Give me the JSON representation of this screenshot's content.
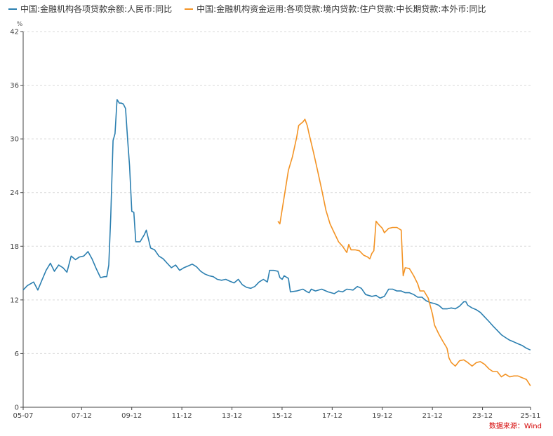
{
  "chart_data": {
    "type": "line",
    "ylabel": "%",
    "ylim": [
      0,
      42
    ],
    "yticks": [
      "0",
      "6",
      "12",
      "18",
      "24",
      "30",
      "36",
      "42"
    ],
    "xlim": [
      2005.5833,
      2025.8333
    ],
    "xticks": [
      {
        "label": "05-07",
        "x": 2005.5833
      },
      {
        "label": "07-12",
        "x": 2007.9167
      },
      {
        "label": "09-12",
        "x": 2009.9167
      },
      {
        "label": "11-12",
        "x": 2011.9167
      },
      {
        "label": "13-12",
        "x": 2013.9167
      },
      {
        "label": "15-12",
        "x": 2015.9167
      },
      {
        "label": "17-12",
        "x": 2017.9167
      },
      {
        "label": "19-12",
        "x": 2019.9167
      },
      {
        "label": "21-12",
        "x": 2021.9167
      },
      {
        "label": "23-12",
        "x": 2023.9167
      },
      {
        "label": "25-11",
        "x": 2025.8333
      }
    ],
    "grid": true,
    "legend_position": "top-left",
    "series": [
      {
        "name": "中国:金融机构各项贷款余额:人民币:同比",
        "color": "#2b7fb0",
        "points": [
          [
            2005.58,
            13.1
          ],
          [
            2005.75,
            13.6
          ],
          [
            2006.0,
            14.0
          ],
          [
            2006.17,
            13.1
          ],
          [
            2006.33,
            14.2
          ],
          [
            2006.5,
            15.3
          ],
          [
            2006.67,
            16.1
          ],
          [
            2006.83,
            15.2
          ],
          [
            2007.0,
            15.9
          ],
          [
            2007.17,
            15.6
          ],
          [
            2007.33,
            15.1
          ],
          [
            2007.5,
            16.9
          ],
          [
            2007.67,
            16.5
          ],
          [
            2007.83,
            16.8
          ],
          [
            2008.0,
            16.9
          ],
          [
            2008.17,
            17.4
          ],
          [
            2008.33,
            16.6
          ],
          [
            2008.5,
            15.5
          ],
          [
            2008.67,
            14.5
          ],
          [
            2008.83,
            14.6
          ],
          [
            2008.92,
            14.6
          ],
          [
            2009.0,
            15.9
          ],
          [
            2009.08,
            21.3
          ],
          [
            2009.17,
            29.8
          ],
          [
            2009.25,
            30.6
          ],
          [
            2009.33,
            34.4
          ],
          [
            2009.42,
            34.0
          ],
          [
            2009.5,
            34.0
          ],
          [
            2009.58,
            33.9
          ],
          [
            2009.67,
            33.4
          ],
          [
            2009.75,
            30.0
          ],
          [
            2009.83,
            27.0
          ],
          [
            2009.92,
            21.9
          ],
          [
            2010.0,
            21.8
          ],
          [
            2010.08,
            18.5
          ],
          [
            2010.25,
            18.5
          ],
          [
            2010.42,
            19.3
          ],
          [
            2010.5,
            19.8
          ],
          [
            2010.67,
            17.8
          ],
          [
            2010.83,
            17.6
          ],
          [
            2011.0,
            16.9
          ],
          [
            2011.17,
            16.6
          ],
          [
            2011.33,
            16.1
          ],
          [
            2011.5,
            15.6
          ],
          [
            2011.67,
            15.9
          ],
          [
            2011.83,
            15.3
          ],
          [
            2012.0,
            15.6
          ],
          [
            2012.17,
            15.8
          ],
          [
            2012.33,
            16.0
          ],
          [
            2012.5,
            15.7
          ],
          [
            2012.67,
            15.2
          ],
          [
            2012.83,
            14.9
          ],
          [
            2013.0,
            14.7
          ],
          [
            2013.17,
            14.6
          ],
          [
            2013.33,
            14.3
          ],
          [
            2013.5,
            14.2
          ],
          [
            2013.67,
            14.3
          ],
          [
            2013.83,
            14.1
          ],
          [
            2014.0,
            13.9
          ],
          [
            2014.17,
            14.3
          ],
          [
            2014.33,
            13.7
          ],
          [
            2014.5,
            13.4
          ],
          [
            2014.67,
            13.3
          ],
          [
            2014.83,
            13.5
          ],
          [
            2015.0,
            14.0
          ],
          [
            2015.17,
            14.3
          ],
          [
            2015.33,
            14.0
          ],
          [
            2015.42,
            15.3
          ],
          [
            2015.58,
            15.3
          ],
          [
            2015.75,
            15.2
          ],
          [
            2015.83,
            14.5
          ],
          [
            2015.92,
            14.3
          ],
          [
            2016.0,
            14.7
          ],
          [
            2016.17,
            14.4
          ],
          [
            2016.25,
            12.9
          ],
          [
            2016.5,
            13.0
          ],
          [
            2016.75,
            13.2
          ],
          [
            2016.92,
            12.9
          ],
          [
            2017.0,
            12.8
          ],
          [
            2017.08,
            13.2
          ],
          [
            2017.25,
            13.0
          ],
          [
            2017.5,
            13.2
          ],
          [
            2017.75,
            12.9
          ],
          [
            2018.0,
            12.7
          ],
          [
            2018.17,
            13.0
          ],
          [
            2018.33,
            12.9
          ],
          [
            2018.5,
            13.2
          ],
          [
            2018.75,
            13.1
          ],
          [
            2018.92,
            13.5
          ],
          [
            2019.08,
            13.3
          ],
          [
            2019.25,
            12.6
          ],
          [
            2019.5,
            12.4
          ],
          [
            2019.67,
            12.5
          ],
          [
            2019.83,
            12.2
          ],
          [
            2020.0,
            12.4
          ],
          [
            2020.17,
            13.2
          ],
          [
            2020.33,
            13.2
          ],
          [
            2020.5,
            13.0
          ],
          [
            2020.67,
            13.0
          ],
          [
            2020.83,
            12.8
          ],
          [
            2021.0,
            12.8
          ],
          [
            2021.17,
            12.6
          ],
          [
            2021.33,
            12.3
          ],
          [
            2021.5,
            12.3
          ],
          [
            2021.67,
            11.9
          ],
          [
            2021.83,
            11.7
          ],
          [
            2022.0,
            11.6
          ],
          [
            2022.17,
            11.4
          ],
          [
            2022.33,
            11.0
          ],
          [
            2022.5,
            11.0
          ],
          [
            2022.67,
            11.1
          ],
          [
            2022.83,
            11.0
          ],
          [
            2023.0,
            11.3
          ],
          [
            2023.17,
            11.8
          ],
          [
            2023.25,
            11.8
          ],
          [
            2023.33,
            11.4
          ],
          [
            2023.5,
            11.1
          ],
          [
            2023.67,
            10.9
          ],
          [
            2023.83,
            10.6
          ],
          [
            2024.0,
            10.1
          ],
          [
            2024.17,
            9.6
          ],
          [
            2024.33,
            9.1
          ],
          [
            2024.5,
            8.6
          ],
          [
            2024.67,
            8.1
          ],
          [
            2024.83,
            7.8
          ],
          [
            2025.0,
            7.5
          ],
          [
            2025.17,
            7.3
          ],
          [
            2025.33,
            7.1
          ],
          [
            2025.5,
            6.9
          ],
          [
            2025.67,
            6.6
          ],
          [
            2025.83,
            6.4
          ]
        ]
      },
      {
        "name": "中国:金融机构资金运用:各项贷款:境内贷款:住户贷款:中长期贷款:本外币:同比",
        "color": "#f39324",
        "points": [
          [
            2015.75,
            20.8
          ],
          [
            2015.83,
            20.5
          ],
          [
            2016.0,
            23.5
          ],
          [
            2016.17,
            26.5
          ],
          [
            2016.33,
            28.0
          ],
          [
            2016.5,
            30.2
          ],
          [
            2016.58,
            31.5
          ],
          [
            2016.75,
            31.9
          ],
          [
            2016.83,
            32.2
          ],
          [
            2016.92,
            31.5
          ],
          [
            2017.0,
            30.5
          ],
          [
            2017.17,
            28.5
          ],
          [
            2017.33,
            26.5
          ],
          [
            2017.5,
            24.3
          ],
          [
            2017.67,
            22.0
          ],
          [
            2017.83,
            20.5
          ],
          [
            2018.0,
            19.5
          ],
          [
            2018.17,
            18.5
          ],
          [
            2018.33,
            18.0
          ],
          [
            2018.5,
            17.3
          ],
          [
            2018.58,
            18.2
          ],
          [
            2018.67,
            17.6
          ],
          [
            2018.83,
            17.6
          ],
          [
            2019.0,
            17.5
          ],
          [
            2019.17,
            17.0
          ],
          [
            2019.33,
            16.8
          ],
          [
            2019.42,
            16.6
          ],
          [
            2019.5,
            17.2
          ],
          [
            2019.58,
            17.5
          ],
          [
            2019.67,
            20.8
          ],
          [
            2019.75,
            20.5
          ],
          [
            2019.92,
            20.0
          ],
          [
            2020.0,
            19.5
          ],
          [
            2020.17,
            20.0
          ],
          [
            2020.33,
            20.1
          ],
          [
            2020.5,
            20.1
          ],
          [
            2020.67,
            19.8
          ],
          [
            2020.75,
            14.7
          ],
          [
            2020.83,
            15.6
          ],
          [
            2021.0,
            15.5
          ],
          [
            2021.17,
            14.7
          ],
          [
            2021.33,
            13.8
          ],
          [
            2021.42,
            13.0
          ],
          [
            2021.58,
            13.0
          ],
          [
            2021.75,
            12.2
          ],
          [
            2021.92,
            10.4
          ],
          [
            2022.0,
            9.2
          ],
          [
            2022.17,
            8.2
          ],
          [
            2022.33,
            7.4
          ],
          [
            2022.5,
            6.6
          ],
          [
            2022.58,
            5.5
          ],
          [
            2022.67,
            5.0
          ],
          [
            2022.83,
            4.6
          ],
          [
            2023.0,
            5.2
          ],
          [
            2023.17,
            5.3
          ],
          [
            2023.33,
            5.0
          ],
          [
            2023.5,
            4.6
          ],
          [
            2023.67,
            5.0
          ],
          [
            2023.83,
            5.1
          ],
          [
            2024.0,
            4.8
          ],
          [
            2024.17,
            4.3
          ],
          [
            2024.33,
            4.0
          ],
          [
            2024.5,
            4.0
          ],
          [
            2024.67,
            3.4
          ],
          [
            2024.83,
            3.7
          ],
          [
            2025.0,
            3.4
          ],
          [
            2025.17,
            3.5
          ],
          [
            2025.33,
            3.5
          ],
          [
            2025.5,
            3.3
          ],
          [
            2025.67,
            3.1
          ],
          [
            2025.83,
            2.4
          ]
        ]
      }
    ]
  },
  "source": "数据来源：Wind"
}
